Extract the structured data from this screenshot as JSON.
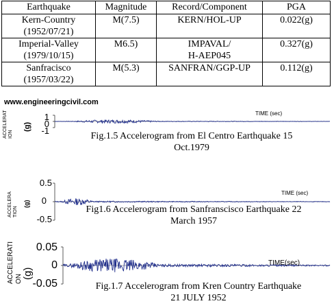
{
  "table": {
    "headers": [
      "Earthquake",
      "Magnitude",
      "Record/Component",
      "PGA"
    ],
    "rows": [
      {
        "earthquake": [
          "Kern-Country",
          "(1952/07/21)"
        ],
        "magnitude": "M(7.5)",
        "record": [
          "KERN/HOL-UP"
        ],
        "pga": "0.022(g)"
      },
      {
        "earthquake": [
          "Imperial-Valley",
          "(1979/10/15)"
        ],
        "magnitude": "M6.5)",
        "record": [
          "IMPAVAL/",
          "H-AEP045"
        ],
        "pga": "0.327(g)"
      },
      {
        "earthquake": [
          "Sanfracisco",
          "(1957/03/22)"
        ],
        "magnitude": "M(5.3)",
        "record": [
          "SANFRAN/GGP-UP"
        ],
        "pga": "0.112(g)"
      }
    ]
  },
  "watermark": "www.engineeringcivil.com",
  "chart_data": [
    {
      "type": "line",
      "ylabel": [
        "ACCELERAT",
        "ION",
        "(g)"
      ],
      "ytick_labels": [
        "1",
        "0",
        "-1"
      ],
      "yticks": [
        1,
        0,
        -1
      ],
      "ylim": [
        -1,
        1
      ],
      "xlabel": "TIME (sec)",
      "caption": [
        "Fig.1.5 Accelerogram from El Centro Earthquake 15",
        "Oct.1979"
      ],
      "peak": 0.33,
      "color": "#1f2d8a"
    },
    {
      "type": "line",
      "ylabel": [
        "ACCELERA",
        "TION",
        "(g)"
      ],
      "ytick_labels": [
        "0.5",
        "0",
        "-0.5"
      ],
      "yticks": [
        0.5,
        0,
        -0.5
      ],
      "ylim": [
        -0.5,
        0.5
      ],
      "xlabel": "TIME (sec)",
      "caption": [
        "Fig1.6 Accelerogram from Sanfranscisco Earthquake 22",
        "March 1957"
      ],
      "peak": 0.11,
      "color": "#1f2d8a"
    },
    {
      "type": "line",
      "ylabel": [
        "ACCELERATI",
        "ON",
        "(g)"
      ],
      "ytick_labels": [
        "0.05",
        "0",
        "-0.05"
      ],
      "yticks": [
        0.05,
        0,
        -0.05
      ],
      "ylim": [
        -0.05,
        0.05
      ],
      "xlabel": "TIME(sec)",
      "caption": [
        "Fig.1.7 Accelerogram from Kren  Country Earthquake",
        "21 JULY 1952"
      ],
      "peak": 0.022,
      "color": "#1f2d8a"
    }
  ]
}
